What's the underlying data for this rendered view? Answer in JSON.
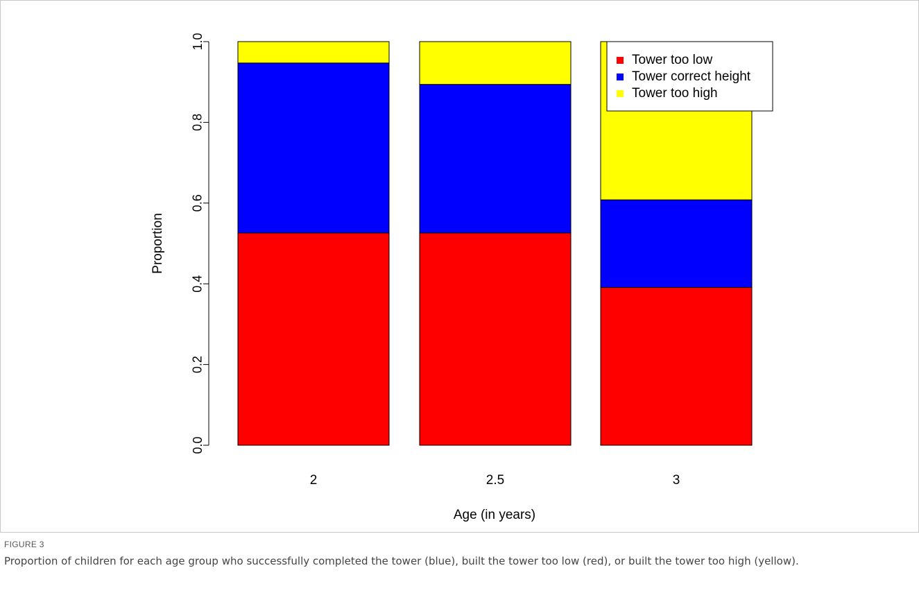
{
  "figure": {
    "label": "FIGURE 3",
    "caption": "Proportion of children for each age group who successfully completed the tower (blue), built the tower too low (red), or built the tower too high (yellow)."
  },
  "chart_data": {
    "type": "bar",
    "stacked": true,
    "categories": [
      "2",
      "2.5",
      "3"
    ],
    "series": [
      {
        "name": "Tower too low",
        "color": "#ff0000",
        "values": [
          0.526,
          0.526,
          0.391
        ]
      },
      {
        "name": "Tower correct height",
        "color": "#0000ff",
        "values": [
          0.421,
          0.368,
          0.217
        ]
      },
      {
        "name": "Tower too high",
        "color": "#ffff00",
        "values": [
          0.053,
          0.106,
          0.392
        ]
      }
    ],
    "xlabel": "Age (in years)",
    "ylabel": "Proportion",
    "ylim": [
      0,
      1
    ],
    "yticks": [
      "0.0",
      "0.2",
      "0.4",
      "0.6",
      "0.8",
      "1.0"
    ],
    "legend_position": "top-right",
    "grid": false
  }
}
